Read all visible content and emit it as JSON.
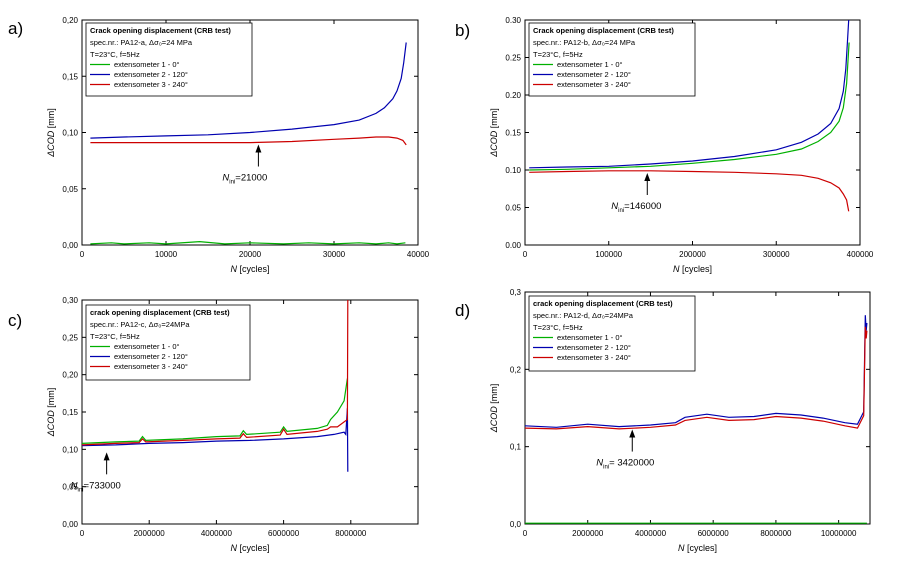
{
  "chart_data": [
    {
      "type": "line",
      "panel_label": "a)",
      "legend_title": "Crack opening displacement (CRB test)",
      "legend_spec": "spec.nr.: PA12-a, Δσ₀=24 MPa",
      "legend_cond": "T=23°C, f=5Hz",
      "xlabel": "N [cycles]",
      "ylabel": "ΔCOD [mm]",
      "xlim": [
        0,
        40000
      ],
      "ylim": [
        0,
        0.2
      ],
      "xticks": [
        0,
        10000,
        20000,
        30000,
        40000
      ],
      "xtick_labels": [
        "0",
        "10000",
        "20000",
        "30000",
        "40000"
      ],
      "yticks": [
        0,
        0.05,
        0.1,
        0.15,
        0.2
      ],
      "ytick_labels": [
        "0,00",
        "0,05",
        "0,10",
        "0,15",
        "0,20"
      ],
      "annotation": {
        "label": "N",
        "sub": "ini",
        "value": "=21000",
        "x": 21000,
        "y": 0.092
      },
      "series": [
        {
          "name": "extensometer 1 - 0°",
          "color": "#00b000",
          "x": [
            1000,
            3500,
            5000,
            8000,
            10000,
            14000,
            17000,
            20000,
            24000,
            27000,
            30000,
            33000,
            35000,
            36500,
            37500,
            38500
          ],
          "y": [
            0.001,
            0.002,
            0.001,
            0.002,
            0.001,
            0.003,
            0.001,
            0.002,
            0.001,
            0.002,
            0.001,
            0.002,
            0.001,
            0.002,
            0.001,
            0.002
          ]
        },
        {
          "name": "extensometer 2 - 120°",
          "color": "#0000b0",
          "x": [
            1000,
            5000,
            10000,
            15000,
            20000,
            25000,
            30000,
            33000,
            35000,
            36000,
            37000,
            37500,
            38000,
            38300,
            38600
          ],
          "y": [
            0.095,
            0.096,
            0.097,
            0.098,
            0.1,
            0.103,
            0.107,
            0.111,
            0.117,
            0.122,
            0.13,
            0.137,
            0.148,
            0.162,
            0.18
          ]
        },
        {
          "name": "extensometer 3 - 240°",
          "color": "#cc0000",
          "x": [
            1000,
            5000,
            10000,
            15000,
            20000,
            25000,
            30000,
            33000,
            35000,
            36500,
            37500,
            38200,
            38600
          ],
          "y": [
            0.091,
            0.091,
            0.091,
            0.091,
            0.091,
            0.092,
            0.094,
            0.095,
            0.096,
            0.096,
            0.095,
            0.093,
            0.089
          ]
        }
      ]
    },
    {
      "type": "line",
      "panel_label": "b)",
      "legend_title": "Crack opening displacement (CRB test)",
      "legend_spec": "spec.nr.: PA12-b, Δσ₀=24 MPa",
      "legend_cond": "T=23°C, f=5Hz",
      "xlabel": "N [cycles]",
      "ylabel": "ΔCOD [mm]",
      "xlim": [
        0,
        400000
      ],
      "ylim": [
        0,
        0.3
      ],
      "xticks": [
        0,
        100000,
        200000,
        300000,
        400000
      ],
      "xtick_labels": [
        "0",
        "100000",
        "200000",
        "300000",
        "400000"
      ],
      "yticks": [
        0,
        0.05,
        0.1,
        0.15,
        0.2,
        0.25,
        0.3
      ],
      "ytick_labels": [
        "0.00",
        "0.05",
        "0.10",
        "0.15",
        "0.20",
        "0.25",
        "0.30"
      ],
      "annotation": {
        "label": "N",
        "sub": "ini",
        "value": "=146000",
        "x": 146000,
        "y": 0.1
      },
      "series": [
        {
          "name": "extensometer 1 - 0°",
          "color": "#00b000",
          "x": [
            5000,
            50000,
            100000,
            150000,
            200000,
            250000,
            300000,
            330000,
            350000,
            365000,
            375000,
            380000,
            384000,
            387000
          ],
          "y": [
            0.1,
            0.101,
            0.103,
            0.105,
            0.109,
            0.114,
            0.121,
            0.128,
            0.138,
            0.15,
            0.165,
            0.183,
            0.215,
            0.27
          ]
        },
        {
          "name": "extensometer 2 - 120°",
          "color": "#0000b0",
          "x": [
            5000,
            50000,
            100000,
            150000,
            200000,
            250000,
            300000,
            330000,
            350000,
            365000,
            375000,
            380000,
            383000,
            385000,
            386500
          ],
          "y": [
            0.103,
            0.104,
            0.105,
            0.108,
            0.112,
            0.118,
            0.127,
            0.137,
            0.148,
            0.162,
            0.182,
            0.205,
            0.235,
            0.27,
            0.3
          ]
        },
        {
          "name": "extensometer 3 - 240°",
          "color": "#cc0000",
          "x": [
            5000,
            50000,
            100000,
            150000,
            200000,
            250000,
            300000,
            330000,
            350000,
            365000,
            375000,
            380000,
            384000,
            386500
          ],
          "y": [
            0.097,
            0.098,
            0.099,
            0.099,
            0.098,
            0.097,
            0.095,
            0.093,
            0.089,
            0.083,
            0.076,
            0.068,
            0.06,
            0.045
          ]
        }
      ]
    },
    {
      "type": "line",
      "panel_label": "c)",
      "legend_title": "crack opening displacement (CRB test)",
      "legend_spec": "spec.nr.: PA12-c, Δσ₀=24MPa",
      "legend_cond": "T=23°C, f=5Hz",
      "xlabel": "N [cycles]",
      "ylabel": "ΔCOD [mm]",
      "xlim": [
        0,
        10000000
      ],
      "ylim": [
        0,
        0.3
      ],
      "xticks": [
        0,
        2000000,
        4000000,
        6000000,
        8000000
      ],
      "xtick_labels": [
        "0",
        "2000000",
        "4000000",
        "6000000",
        "8000000"
      ],
      "yticks": [
        0,
        0.05,
        0.1,
        0.15,
        0.2,
        0.25,
        0.3
      ],
      "ytick_labels": [
        "0,00",
        "0,05",
        "0,10",
        "0,15",
        "0,20",
        "0,25",
        "0,30"
      ],
      "annotation": {
        "label": "N",
        "sub": "ini",
        "value": "=733000",
        "x": 733000,
        "y": 0.1
      },
      "series": [
        {
          "name": "extensometer 1 - 0°",
          "color": "#00b000",
          "x": [
            0,
            500000,
            1000000,
            1700000,
            1800000,
            1900000,
            3000000,
            4000000,
            4700000,
            4800000,
            4900000,
            5900000,
            6000000,
            6100000,
            7000000,
            7300000,
            7400000,
            7600000,
            7800000,
            7900000
          ],
          "y": [
            0.108,
            0.109,
            0.11,
            0.111,
            0.117,
            0.112,
            0.114,
            0.117,
            0.118,
            0.125,
            0.12,
            0.123,
            0.13,
            0.124,
            0.128,
            0.132,
            0.14,
            0.15,
            0.165,
            0.195
          ]
        },
        {
          "name": "extensometer 2 - 120°",
          "color": "#0000b0",
          "x": [
            0,
            1000000,
            2000000,
            3000000,
            4000000,
            5000000,
            6000000,
            7000000,
            7500000,
            7800000,
            7850000,
            7900000,
            7910000
          ],
          "y": [
            0.105,
            0.106,
            0.108,
            0.109,
            0.111,
            0.112,
            0.114,
            0.117,
            0.12,
            0.123,
            0.12,
            0.155,
            0.07
          ]
        },
        {
          "name": "extensometer 3 - 240°",
          "color": "#cc0000",
          "x": [
            0,
            500000,
            1000000,
            1700000,
            1800000,
            1900000,
            3000000,
            4000000,
            4700000,
            4800000,
            4900000,
            5900000,
            6000000,
            6100000,
            7000000,
            7300000,
            7400000,
            7600000,
            7900000,
            7910000
          ],
          "y": [
            0.106,
            0.107,
            0.108,
            0.109,
            0.114,
            0.11,
            0.112,
            0.114,
            0.115,
            0.121,
            0.116,
            0.119,
            0.127,
            0.12,
            0.124,
            0.127,
            0.13,
            0.13,
            0.14,
            0.3
          ]
        }
      ]
    },
    {
      "type": "line",
      "panel_label": "d)",
      "legend_title": "crack opening displacement (CRB test)",
      "legend_spec": "spec.nr.: PA12-d, Δσ₀=24MPa",
      "legend_cond": "T=23°C, f=5Hz",
      "xlabel": "N [cycles]",
      "ylabel": "ΔCOD [mm]",
      "xlim": [
        0,
        11000000
      ],
      "ylim": [
        0,
        0.3
      ],
      "xticks": [
        0,
        2000000,
        4000000,
        6000000,
        8000000,
        10000000
      ],
      "xtick_labels": [
        "0",
        "2000000",
        "4000000",
        "6000000",
        "8000000",
        "10000000"
      ],
      "yticks": [
        0,
        0.1,
        0.2,
        0.3
      ],
      "ytick_labels": [
        "0,0",
        "0,1",
        "0,2",
        "0,3"
      ],
      "annotation": {
        "label": "N",
        "sub": "ini",
        "value": "= 3420000",
        "x": 3420000,
        "y": 0.126
      },
      "series": [
        {
          "name": "extensometer 1 - 0°",
          "color": "#00b000",
          "x": [
            0,
            2000000,
            4000000,
            6000000,
            8000000,
            10000000,
            10900000
          ],
          "y": [
            0.001,
            0.001,
            0.001,
            0.001,
            0.001,
            0.001,
            0.001
          ]
        },
        {
          "name": "extensometer 2 - 120°",
          "color": "#0000b0",
          "x": [
            0,
            1000000,
            2000000,
            3000000,
            4000000,
            4800000,
            5100000,
            5800000,
            6500000,
            7300000,
            8000000,
            8800000,
            9500000,
            10200000,
            10600000,
            10800000,
            10850000,
            10880000,
            10900000
          ],
          "y": [
            0.127,
            0.125,
            0.129,
            0.126,
            0.128,
            0.131,
            0.138,
            0.142,
            0.138,
            0.139,
            0.143,
            0.141,
            0.137,
            0.131,
            0.129,
            0.145,
            0.27,
            0.25,
            0.26
          ]
        },
        {
          "name": "extensometer 3 - 240°",
          "color": "#cc0000",
          "x": [
            0,
            1000000,
            2000000,
            3000000,
            4000000,
            4800000,
            5100000,
            5800000,
            6500000,
            7300000,
            8000000,
            8800000,
            9500000,
            10200000,
            10600000,
            10800000,
            10850000,
            10880000,
            10900000
          ],
          "y": [
            0.124,
            0.123,
            0.126,
            0.123,
            0.125,
            0.128,
            0.134,
            0.138,
            0.134,
            0.135,
            0.139,
            0.137,
            0.133,
            0.127,
            0.124,
            0.14,
            0.255,
            0.24,
            0.25
          ]
        }
      ]
    }
  ]
}
